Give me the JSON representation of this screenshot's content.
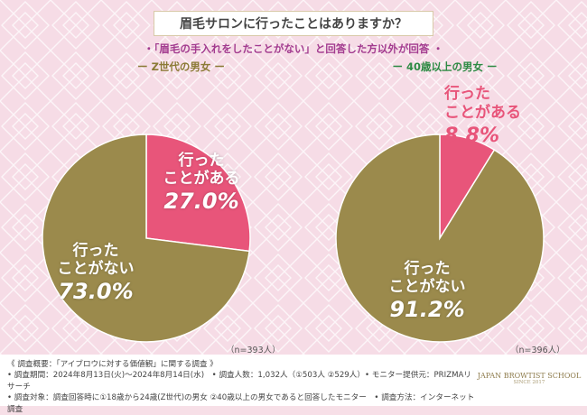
{
  "title": "眉毛サロンに行ったことはありますか？",
  "subtitle": "・「眉毛の手入れをしたことがない」と回答した方以外が回答 ・",
  "chart_data": [
    {
      "type": "pie",
      "group": "Z世代の男女",
      "categories": [
        "行ったことがある",
        "行ったことがない"
      ],
      "values": [
        27.0,
        73.0
      ],
      "value_labels": [
        "27.0%",
        "73.0%"
      ],
      "colors": [
        "#e8557a",
        "#9b8a4c"
      ],
      "n": "（n=393人）"
    },
    {
      "type": "pie",
      "group": "40歳以上の男女",
      "categories": [
        "行ったことがある",
        "行ったことがない"
      ],
      "values": [
        8.8,
        91.2
      ],
      "value_labels": [
        "8.8%",
        "91.2%"
      ],
      "colors": [
        "#e8557a",
        "#9b8a4c"
      ],
      "n": "（n=396人）"
    }
  ],
  "labels": {
    "left_yes_line1": "行った",
    "left_yes_line2": "ことがある",
    "left_no_line1": "行った",
    "left_no_line2": "ことがない",
    "right_yes_line1": "行った",
    "right_yes_line2": "ことがある",
    "right_no_line1": "行った",
    "right_no_line2": "ことがない"
  },
  "group_labels": {
    "left": "ー Z世代の男女 ー",
    "right": "ー 40歳以上の男女 ー"
  },
  "footer": {
    "line1": "《 調査概要：「アイブロウに対する価値観」に関する調査 》",
    "line2": "• 調査期間：2024年8月13日(火)〜2024年8月14日(水)　• 調査人数：1,032人（①503人 ②529人）• モニター提供元：PRIZMAリサーチ",
    "line3": "• 調査対象：調査回答時に①18歳から24歳(Z世代)の男女 ②40歳以上の男女であると回答したモニター　• 調査方法：インターネット調査"
  },
  "logo": {
    "name": "JAPAN BROWTIST SCHOOL",
    "sub": "SINCE 2017"
  }
}
